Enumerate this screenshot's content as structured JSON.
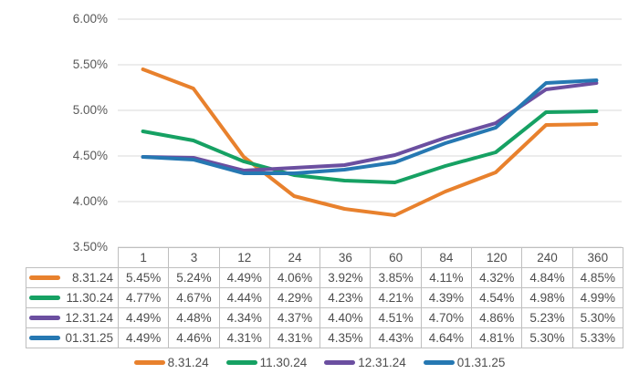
{
  "chart_data": {
    "type": "line",
    "title": "",
    "xlabel": "",
    "ylabel": "",
    "categories": [
      "1",
      "3",
      "12",
      "24",
      "36",
      "60",
      "84",
      "120",
      "240",
      "360"
    ],
    "series": [
      {
        "name": "8.31.24",
        "color": "#e8812d",
        "values": [
          5.45,
          5.24,
          4.49,
          4.06,
          3.92,
          3.85,
          4.11,
          4.32,
          4.84,
          4.85
        ]
      },
      {
        "name": "11.30.24",
        "color": "#16a163",
        "values": [
          4.77,
          4.67,
          4.44,
          4.29,
          4.23,
          4.21,
          4.39,
          4.54,
          4.98,
          4.99
        ]
      },
      {
        "name": "12.31.24",
        "color": "#6b4fa0",
        "values": [
          4.49,
          4.48,
          4.34,
          4.37,
          4.4,
          4.51,
          4.7,
          4.86,
          5.23,
          5.3
        ]
      },
      {
        "name": "01.31.25",
        "color": "#2678b2",
        "values": [
          4.49,
          4.46,
          4.31,
          4.31,
          4.35,
          4.43,
          4.64,
          4.81,
          5.3,
          5.33
        ]
      }
    ],
    "y_axis": {
      "min": 3.5,
      "max": 6.0,
      "step": 0.5,
      "tick_labels": [
        "6.00%",
        "5.50%",
        "5.00%",
        "4.50%",
        "4.00%",
        "3.50%"
      ]
    },
    "grid": true,
    "gridline_color": "#d9d9d9",
    "legend_position": "bottom"
  },
  "table": {
    "column_headers": [
      "1",
      "3",
      "12",
      "24",
      "36",
      "60",
      "84",
      "120",
      "240",
      "360"
    ],
    "rows": [
      {
        "label": "8.31.24",
        "values": [
          "5.45%",
          "5.24%",
          "4.49%",
          "4.06%",
          "3.92%",
          "3.85%",
          "4.11%",
          "4.32%",
          "4.84%",
          "4.85%"
        ]
      },
      {
        "label": "11.30.24",
        "values": [
          "4.77%",
          "4.67%",
          "4.44%",
          "4.29%",
          "4.23%",
          "4.21%",
          "4.39%",
          "4.54%",
          "4.98%",
          "4.99%"
        ]
      },
      {
        "label": "12.31.24",
        "values": [
          "4.49%",
          "4.48%",
          "4.34%",
          "4.37%",
          "4.40%",
          "4.51%",
          "4.70%",
          "4.86%",
          "5.23%",
          "5.30%"
        ]
      },
      {
        "label": "01.31.25",
        "values": [
          "4.49%",
          "4.46%",
          "4.31%",
          "4.31%",
          "4.35%",
          "4.43%",
          "4.64%",
          "4.81%",
          "5.30%",
          "5.33%"
        ]
      }
    ]
  },
  "legend": {
    "items": [
      {
        "label": "8.31.24",
        "color": "#e8812d"
      },
      {
        "label": "11.30.24",
        "color": "#16a163"
      },
      {
        "label": "12.31.24",
        "color": "#6b4fa0"
      },
      {
        "label": "01.31.25",
        "color": "#2678b2"
      }
    ]
  },
  "colors": {
    "gridline": "#d9d9d9",
    "table_border": "#bfbfbf",
    "axis_text": "#595959",
    "table_text": "#4d4d4d"
  }
}
